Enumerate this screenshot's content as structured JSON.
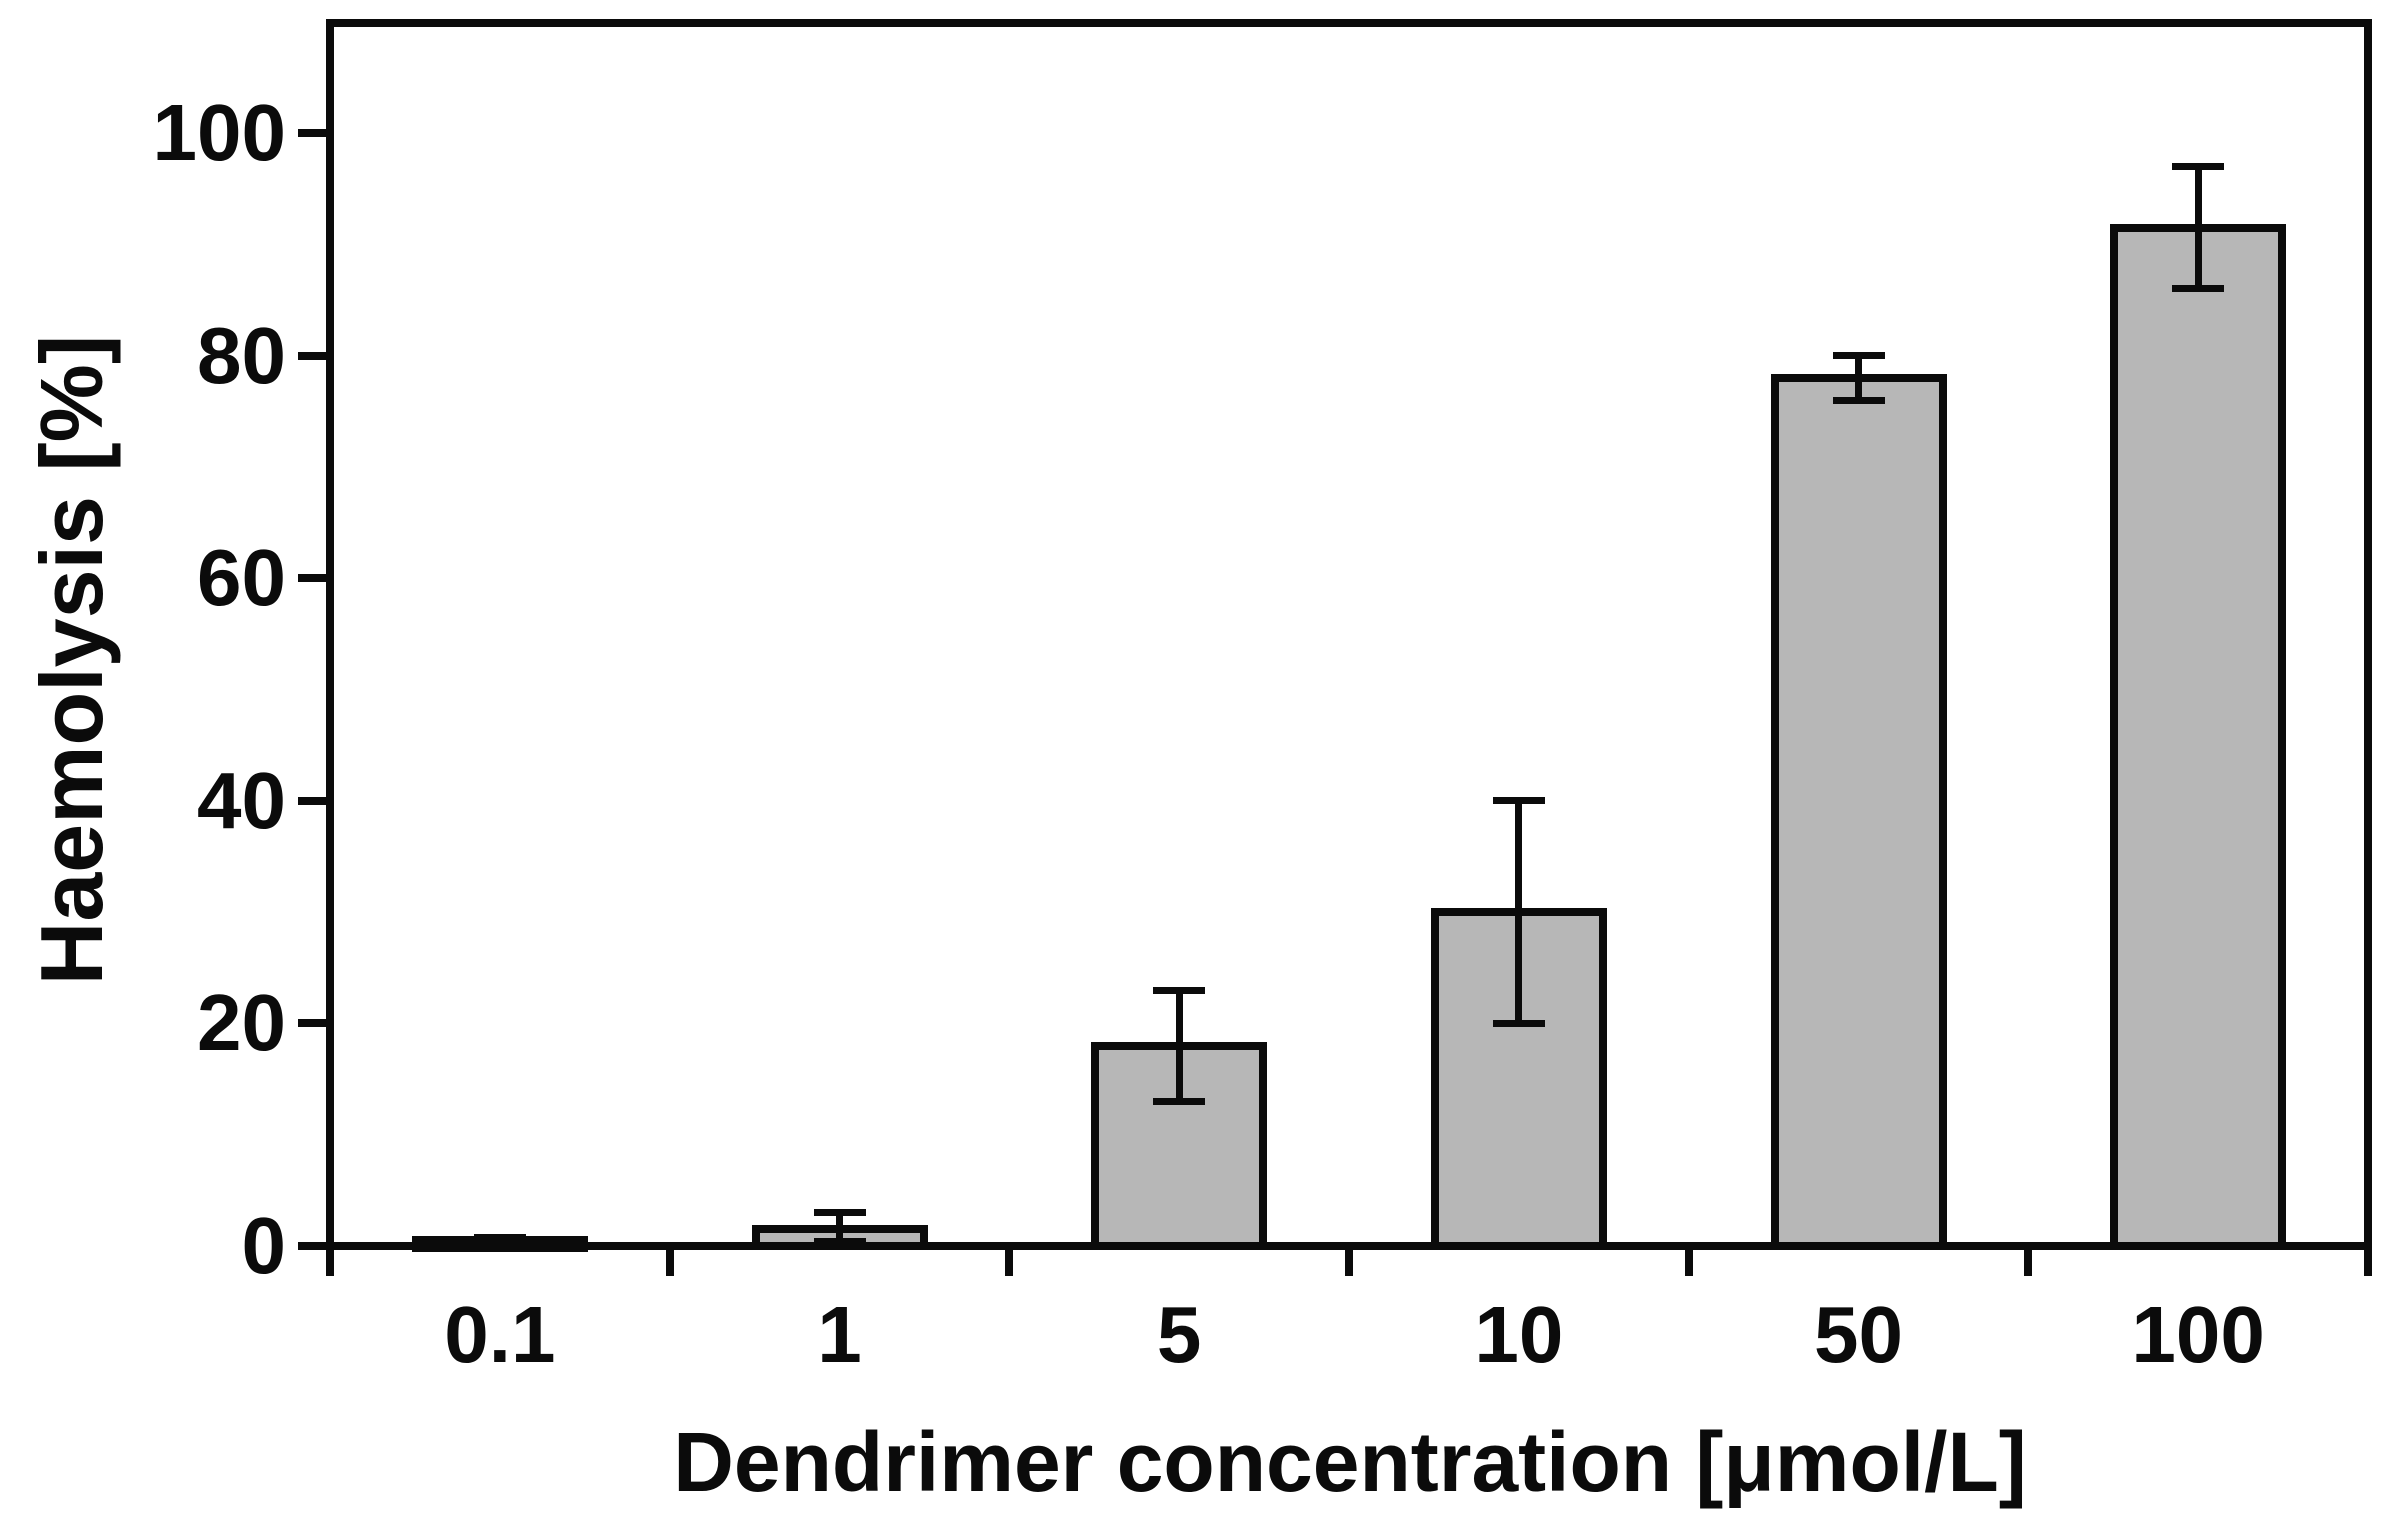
{
  "chart_data": {
    "type": "bar",
    "title": "",
    "xlabel": "Dendrimer concentration [μmol/L]",
    "ylabel": "Haemolysis [%]",
    "categories": [
      "0.1",
      "1",
      "5",
      "10",
      "50",
      "100"
    ],
    "values": [
      0.5,
      1.5,
      18,
      30,
      78,
      91.5
    ],
    "error_low_abs": [
      0.2,
      0.4,
      13,
      20,
      76,
      86
    ],
    "error_high_abs": [
      0.8,
      3,
      23,
      40,
      80,
      97
    ],
    "y_ticks": [
      0,
      20,
      40,
      60,
      80,
      100
    ],
    "ylim": [
      0,
      110
    ],
    "grid": false,
    "legend_position": "none",
    "bar_fill_color": "#b7b7b7",
    "line_color": "#0b0b0b",
    "background_color": "#ffffff"
  }
}
